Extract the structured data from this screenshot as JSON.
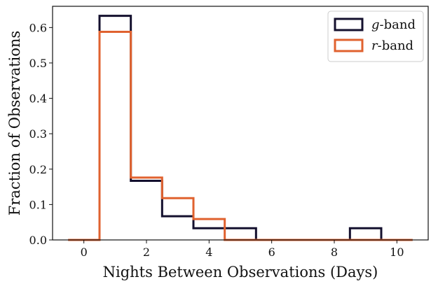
{
  "chart_data": {
    "type": "step-histogram",
    "x_label": "Nights Between Observations (Days)",
    "y_label": "Fraction of Observations",
    "xlim": [
      -1,
      11
    ],
    "ylim": [
      0,
      0.66
    ],
    "x_ticks": [
      0,
      2,
      4,
      6,
      8,
      10
    ],
    "x_tick_labels": [
      "0",
      "2",
      "4",
      "6",
      "8",
      "10"
    ],
    "y_ticks": [
      0.0,
      0.1,
      0.2,
      0.3,
      0.4,
      0.5,
      0.6
    ],
    "y_tick_labels": [
      "0.0",
      "0.1",
      "0.2",
      "0.3",
      "0.4",
      "0.5",
      "0.6"
    ],
    "bin_edges": [
      -0.5,
      0.5,
      1.5,
      2.5,
      3.5,
      4.5,
      5.5,
      6.5,
      7.5,
      8.5,
      9.5,
      10.5
    ],
    "bin_centers": [
      0,
      1,
      2,
      3,
      4,
      5,
      6,
      7,
      8,
      9,
      10
    ],
    "series": [
      {
        "name": "g-band",
        "name_italic": "g",
        "name_rest": "-band",
        "color": "#14102e",
        "values": [
          0,
          0.633,
          0.167,
          0.067,
          0.033,
          0.033,
          0,
          0,
          0,
          0.033,
          0
        ]
      },
      {
        "name": "r-band",
        "name_italic": "r",
        "name_rest": "-band",
        "color": "#e0622f",
        "values": [
          0,
          0.588,
          0.176,
          0.118,
          0.059,
          0,
          0,
          0,
          0,
          0,
          0
        ]
      }
    ],
    "legend_position": "top-right",
    "grid": false
  }
}
